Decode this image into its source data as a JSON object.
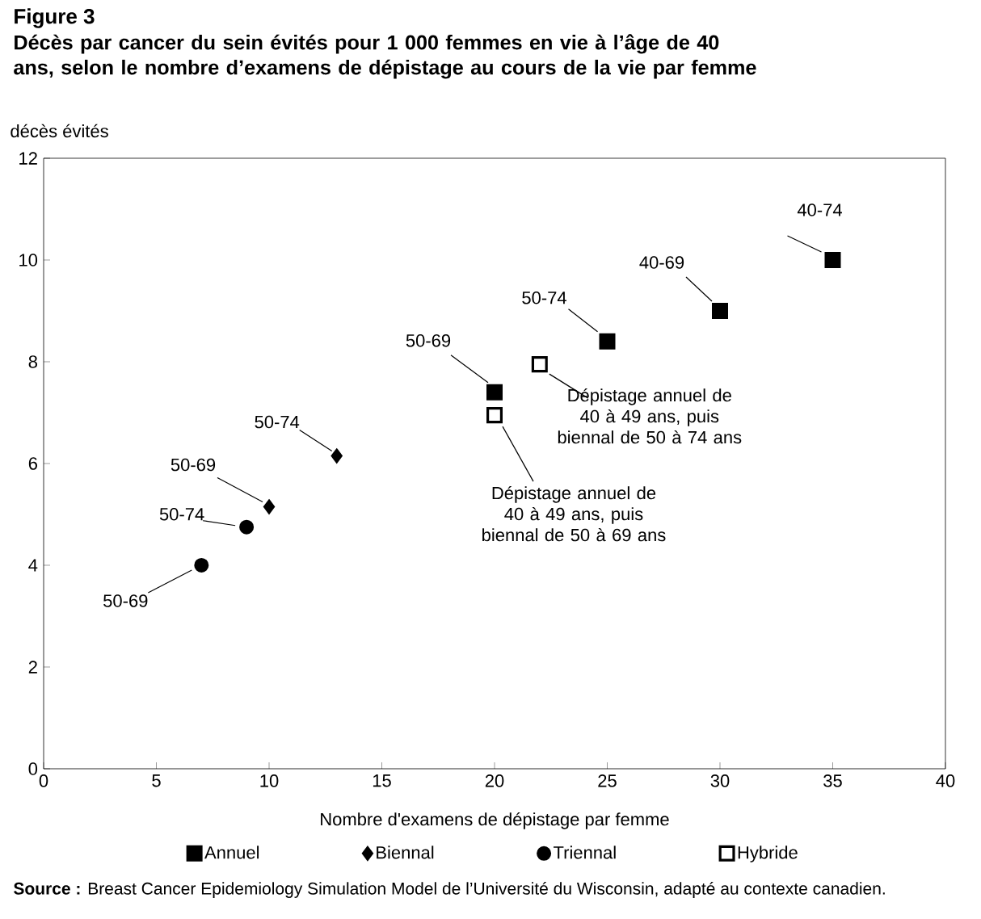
{
  "chart_data": {
    "type": "scatter",
    "title": "Figure 3",
    "subtitle": "Décès par cancer du sein évités pour 1 000 femmes en vie à l’âge de 40 ans, selon le nombre d’examens de dépistage au cours de la vie par femme",
    "xlabel": "Nombre d'examens de dépistage par femme",
    "ylabel": "décès évités",
    "series": [
      {
        "name": "Annuel",
        "color": "#000000",
        "marker": "square",
        "x": [
          20,
          25,
          30,
          35
        ],
        "values": [
          7.4,
          8.4,
          9.0,
          10.0
        ]
      },
      {
        "name": "Biennal",
        "color": "#000000",
        "marker": "diamond",
        "x": [
          10,
          13
        ],
        "values": [
          5.15,
          6.15
        ]
      },
      {
        "name": "Triennal",
        "color": "#000000",
        "marker": "circle",
        "x": [
          7,
          9
        ],
        "values": [
          4.0,
          4.75
        ]
      },
      {
        "name": "Hybride",
        "color": "#ffffff",
        "marker": "square",
        "x": [
          20,
          22
        ],
        "values": [
          6.95,
          7.95
        ]
      }
    ],
    "xlim": [
      0,
      40
    ],
    "xticks": [
      0,
      5,
      10,
      15,
      20,
      25,
      30,
      35,
      40
    ],
    "ylim": [
      0,
      12
    ],
    "yticks": [
      0,
      2,
      4,
      6,
      8,
      10,
      12
    ],
    "legend": "bottom",
    "annotations": [
      {
        "text": "50-69",
        "x": 20,
        "y": 7.4
      },
      {
        "text": "50-74",
        "x": 25,
        "y": 8.4
      },
      {
        "text": "40-69",
        "x": 30,
        "y": 9.0
      },
      {
        "text": "40-74",
        "x": 35,
        "y": 10.0
      },
      {
        "text": "50-74",
        "x": 13,
        "y": 6.15
      },
      {
        "text": "50-69",
        "x": 10,
        "y": 5.15
      },
      {
        "text": "50-74",
        "x": 9,
        "y": 4.75
      },
      {
        "text": "50-69",
        "x": 7,
        "y": 4.0
      },
      {
        "text": "Dépistage annuel de 40 à 49 ans, puis biennal de 50 à 69 ans",
        "x": 20,
        "y": 6.95
      },
      {
        "text": "Dépistage annuel de 40 à 49 ans, puis biennal de 50 à 74 ans",
        "x": 22,
        "y": 7.95
      },
      "**Source :** Breast Cancer Epidemiology Simulation Model de l’Université du Wisconsin, adapté au contexte canadien."
    ]
  }
}
